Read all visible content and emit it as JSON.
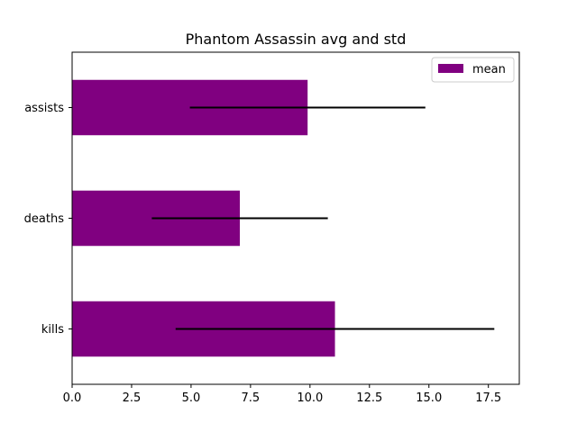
{
  "chart_data": {
    "type": "bar",
    "orientation": "horizontal",
    "title": "Phantom Assassin avg and std",
    "xlabel": "",
    "ylabel": "",
    "categories": [
      "kills",
      "deaths",
      "assists"
    ],
    "series": [
      {
        "name": "mean",
        "values": [
          11.05,
          7.05,
          9.9
        ],
        "error": [
          6.7,
          3.7,
          4.95
        ],
        "color": "#800080"
      }
    ],
    "xlim": [
      0,
      18.8
    ],
    "xticks": [
      "0.0",
      "2.5",
      "5.0",
      "7.5",
      "10.0",
      "12.5",
      "15.0",
      "17.5"
    ],
    "grid": false,
    "legend": {
      "position": "top-right",
      "entries": [
        "mean"
      ]
    },
    "errorbar_color": "#000000"
  }
}
